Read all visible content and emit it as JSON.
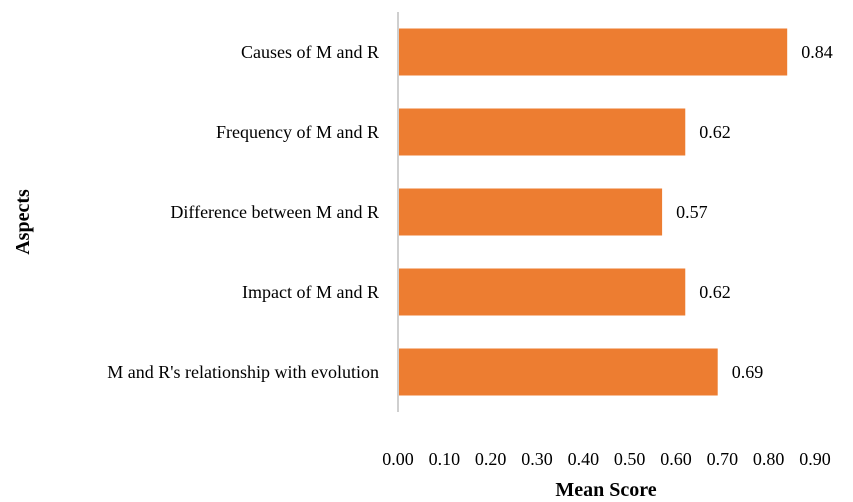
{
  "chart_data": {
    "type": "bar",
    "orientation": "horizontal",
    "categories": [
      "Causes of M and R",
      "Frequency of M and R",
      "Difference between M and R",
      "Impact of M and R",
      "M and R's relationship with evolution"
    ],
    "values": [
      0.84,
      0.62,
      0.57,
      0.62,
      0.69
    ],
    "data_labels": [
      "0.84",
      "0.62",
      "0.57",
      "0.62",
      "0.69"
    ],
    "xlabel": "Mean Score",
    "ylabel": "Aspects",
    "xlim": [
      0,
      0.9
    ],
    "x_ticks": [
      "0.00",
      "0.10",
      "0.20",
      "0.30",
      "0.40",
      "0.50",
      "0.60",
      "0.70",
      "0.80",
      "0.90"
    ],
    "bar_color": "#ED7D31",
    "axis_color": "#BFBFBF",
    "grid": false,
    "legend": "none"
  }
}
